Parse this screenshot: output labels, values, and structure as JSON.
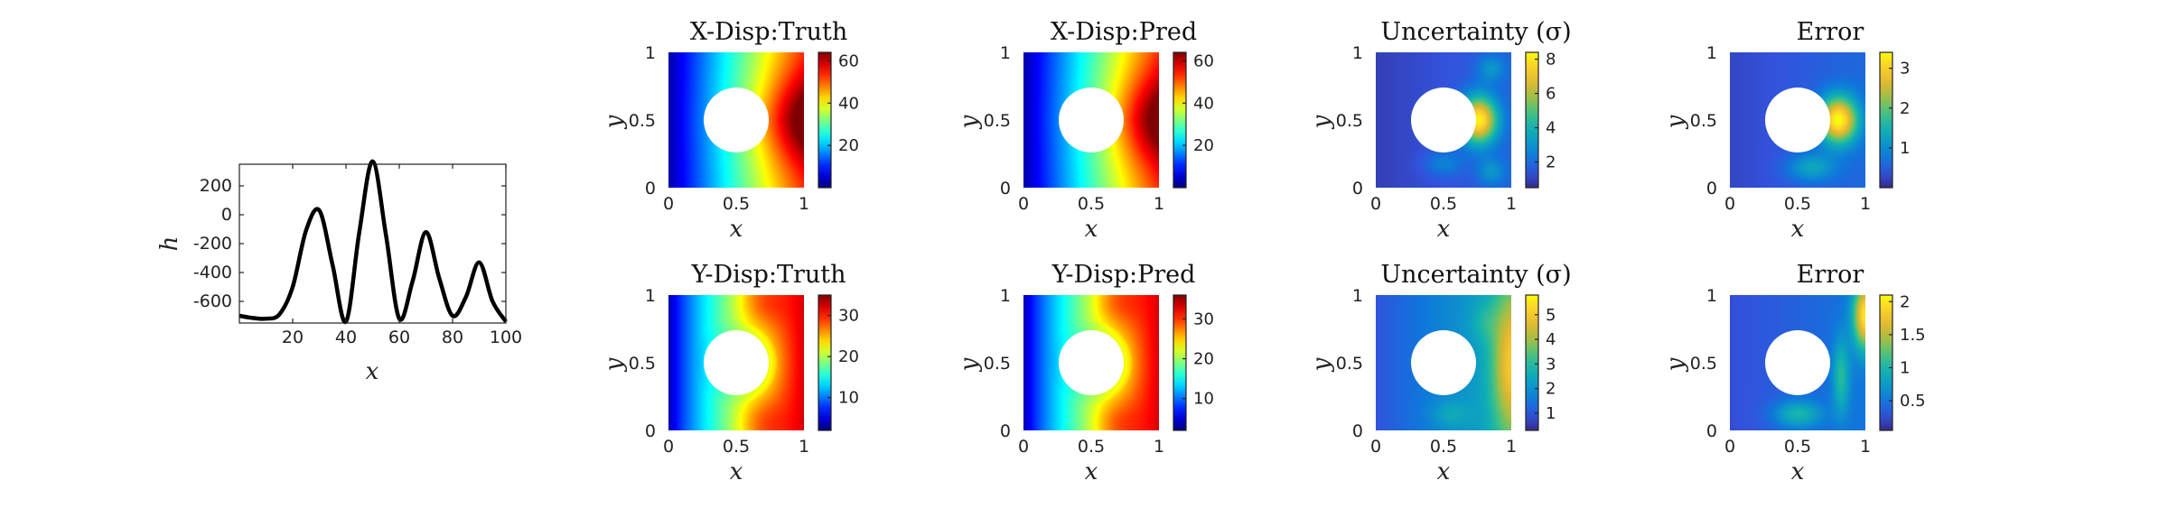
{
  "colors": {
    "curve": "#000000",
    "hole": "#ffffff",
    "jet": [
      "#00007f",
      "#0000ff",
      "#007fff",
      "#00ffff",
      "#7fff7f",
      "#ffff00",
      "#ff7f00",
      "#ff0000",
      "#7f0000"
    ],
    "parula": [
      "#352a87",
      "#3352dc",
      "#0f77db",
      "#0c98c9",
      "#12b2b0",
      "#45c183",
      "#9cc048",
      "#e2b72f",
      "#fcce2e",
      "#f9fb0e"
    ]
  },
  "chart_data": [
    {
      "type": "line",
      "id": "line",
      "xlabel": "x",
      "ylabel": "h",
      "xlim": [
        0,
        100
      ],
      "ylim": [
        -750,
        350
      ],
      "xticks": [
        "20",
        "40",
        "60",
        "80",
        "100"
      ],
      "yticks": [
        "200",
        "0",
        "-200",
        "-400",
        "-600"
      ],
      "x": [
        0,
        5,
        10,
        15,
        20,
        25,
        30,
        35,
        40,
        45,
        50,
        55,
        60,
        65,
        70,
        75,
        80,
        85,
        90,
        95,
        100
      ],
      "y": [
        -700,
        -715,
        -720,
        -690,
        -500,
        -110,
        30,
        -350,
        -740,
        -120,
        370,
        -140,
        -720,
        -460,
        -120,
        -440,
        -700,
        -570,
        -330,
        -600,
        -740
      ]
    },
    {
      "type": "heatmap",
      "id": "xtruth",
      "title": "X-Disp:Truth",
      "xlabel": "x",
      "ylabel": "y",
      "colormap": "jet",
      "xticks": [
        "0",
        "0.5",
        "1"
      ],
      "yticks": [
        "1",
        "0.5",
        "0"
      ],
      "clim": [
        0,
        64
      ],
      "colorbar_ticks": [
        {
          "v": 60,
          "label": "60"
        },
        {
          "v": 40,
          "label": "40"
        },
        {
          "v": 20,
          "label": "20"
        }
      ],
      "field": "xdisp",
      "hole": {
        "cx": 0.5,
        "cy": 0.5,
        "r": 0.24
      }
    },
    {
      "type": "heatmap",
      "id": "xpred",
      "title": "X-Disp:Pred",
      "xlabel": "x",
      "ylabel": "y",
      "colormap": "jet",
      "xticks": [
        "0",
        "0.5",
        "1"
      ],
      "yticks": [
        "1",
        "0.5",
        "0"
      ],
      "clim": [
        0,
        64
      ],
      "colorbar_ticks": [
        {
          "v": 60,
          "label": "60"
        },
        {
          "v": 40,
          "label": "40"
        },
        {
          "v": 20,
          "label": "20"
        }
      ],
      "field": "xdisp",
      "hole": {
        "cx": 0.5,
        "cy": 0.5,
        "r": 0.24
      }
    },
    {
      "type": "heatmap",
      "id": "xunc",
      "title": "Uncertainty (σ)",
      "xlabel": "x",
      "ylabel": "y",
      "colormap": "parula",
      "xticks": [
        "0",
        "0.5",
        "1"
      ],
      "yticks": [
        "1",
        "0.5",
        "0"
      ],
      "clim": [
        0.5,
        8.4
      ],
      "colorbar_ticks": [
        {
          "v": 8,
          "label": "8"
        },
        {
          "v": 6,
          "label": "6"
        },
        {
          "v": 4,
          "label": "4"
        },
        {
          "v": 2,
          "label": "2"
        }
      ],
      "field": "xunc",
      "hole": {
        "cx": 0.5,
        "cy": 0.5,
        "r": 0.24
      }
    },
    {
      "type": "heatmap",
      "id": "xerr",
      "title": "Error",
      "xlabel": "x",
      "ylabel": "y",
      "colormap": "parula",
      "xticks": [
        "0",
        "0.5",
        "1"
      ],
      "yticks": [
        "1",
        "0.5",
        "0"
      ],
      "clim": [
        0,
        3.4
      ],
      "colorbar_ticks": [
        {
          "v": 3,
          "label": "3"
        },
        {
          "v": 2,
          "label": "2"
        },
        {
          "v": 1,
          "label": "1"
        }
      ],
      "field": "xerr",
      "hole": {
        "cx": 0.5,
        "cy": 0.5,
        "r": 0.24
      }
    },
    {
      "type": "heatmap",
      "id": "ytruth",
      "title": "Y-Disp:Truth",
      "xlabel": "x",
      "ylabel": "y",
      "colormap": "jet",
      "xticks": [
        "0",
        "0.5",
        "1"
      ],
      "yticks": [
        "1",
        "0.5",
        "0"
      ],
      "clim": [
        2,
        35
      ],
      "colorbar_ticks": [
        {
          "v": 30,
          "label": "30"
        },
        {
          "v": 20,
          "label": "20"
        },
        {
          "v": 10,
          "label": "10"
        }
      ],
      "field": "ydisp",
      "hole": {
        "cx": 0.5,
        "cy": 0.5,
        "r": 0.24
      }
    },
    {
      "type": "heatmap",
      "id": "ypred",
      "title": "Y-Disp:Pred",
      "xlabel": "x",
      "ylabel": "y",
      "colormap": "jet",
      "xticks": [
        "0",
        "0.5",
        "1"
      ],
      "yticks": [
        "1",
        "0.5",
        "0"
      ],
      "clim": [
        2,
        36
      ],
      "colorbar_ticks": [
        {
          "v": 30,
          "label": "30"
        },
        {
          "v": 20,
          "label": "20"
        },
        {
          "v": 10,
          "label": "10"
        }
      ],
      "field": "ydisp",
      "hole": {
        "cx": 0.5,
        "cy": 0.5,
        "r": 0.24
      }
    },
    {
      "type": "heatmap",
      "id": "yunc",
      "title": "Uncertainty (σ)",
      "xlabel": "x",
      "ylabel": "y",
      "colormap": "parula",
      "xticks": [
        "0",
        "0.5",
        "1"
      ],
      "yticks": [
        "1",
        "0.5",
        "0"
      ],
      "clim": [
        0.3,
        5.8
      ],
      "colorbar_ticks": [
        {
          "v": 5,
          "label": "5"
        },
        {
          "v": 4,
          "label": "4"
        },
        {
          "v": 3,
          "label": "3"
        },
        {
          "v": 2,
          "label": "2"
        },
        {
          "v": 1,
          "label": "1"
        }
      ],
      "field": "yunc",
      "hole": {
        "cx": 0.5,
        "cy": 0.5,
        "r": 0.24
      }
    },
    {
      "type": "heatmap",
      "id": "yerr",
      "title": "Error",
      "xlabel": "x",
      "ylabel": "y",
      "colormap": "parula",
      "xticks": [
        "0",
        "0.5",
        "1"
      ],
      "yticks": [
        "1",
        "0.5",
        "0"
      ],
      "clim": [
        0.05,
        2.1
      ],
      "colorbar_ticks": [
        {
          "v": 2,
          "label": "2"
        },
        {
          "v": 1.5,
          "label": "1.5"
        },
        {
          "v": 1,
          "label": "1"
        },
        {
          "v": 0.5,
          "label": "0.5"
        }
      ],
      "field": "yerr",
      "hole": {
        "cx": 0.5,
        "cy": 0.5,
        "r": 0.24
      }
    }
  ]
}
